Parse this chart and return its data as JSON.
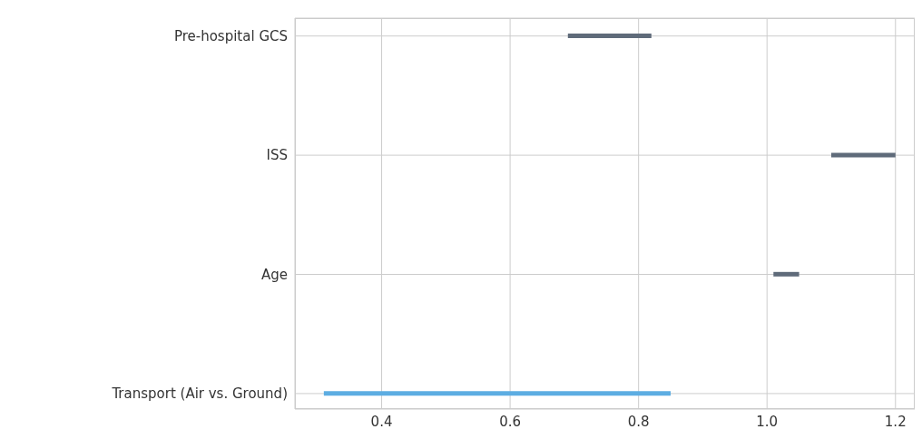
{
  "chart_data": {
    "type": "bar",
    "orientation": "horizontal",
    "categories": [
      "Pre-hospital GCS",
      "ISS",
      "Age",
      "Transport (Air vs. Ground)"
    ],
    "base": [
      0.69,
      1.1,
      1.01,
      0.31
    ],
    "values": [
      0.13,
      0.1,
      0.04,
      0.54
    ],
    "colors": [
      "#5f6b7a",
      "#5f6b7a",
      "#5f6b7a",
      "#5dade2"
    ],
    "xlim": [
      0.265,
      1.23
    ],
    "xticks": [
      {
        "value": 0.4,
        "label": "0.4"
      },
      {
        "value": 0.6,
        "label": "0.6"
      },
      {
        "value": 0.8,
        "label": "0.8"
      },
      {
        "value": 1,
        "label": "1.0"
      },
      {
        "value": 1.2,
        "label": "1.2"
      }
    ],
    "grid": true
  }
}
